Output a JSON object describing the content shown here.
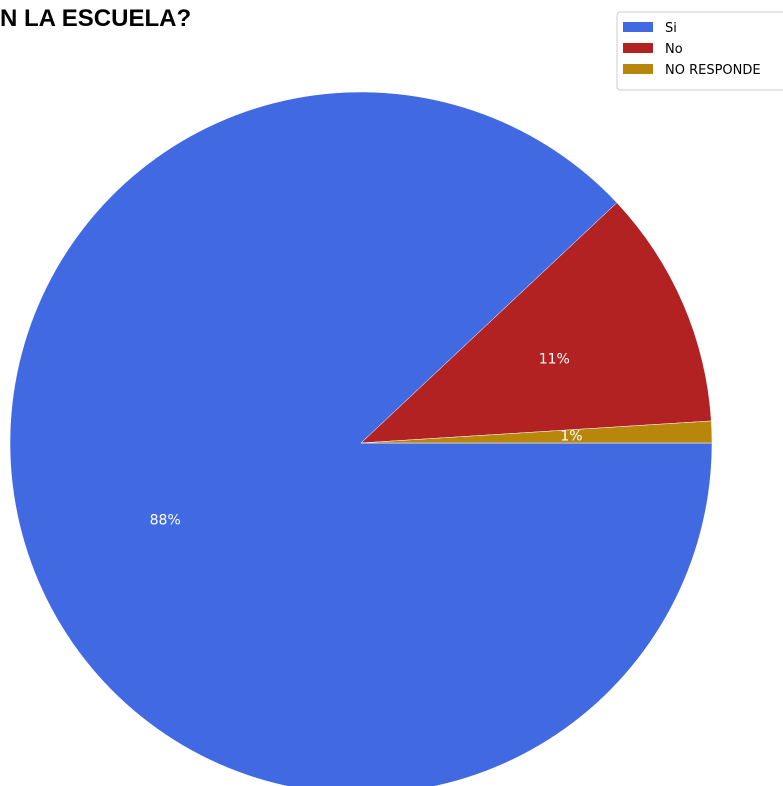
{
  "chart_data": {
    "type": "pie",
    "title": "N LA ESCUELA?",
    "categories": [
      "Si",
      "No",
      "NO RESPONDE"
    ],
    "values": [
      88,
      11,
      1
    ],
    "labels": [
      "88%",
      "11%",
      "1%"
    ],
    "colors": [
      "#4169e1",
      "#b22222",
      "#b8860b"
    ],
    "start_angle_deg": 0,
    "direction": "clockwise",
    "legend": {
      "placement": "top-right",
      "entries": [
        "Si",
        "No",
        "NO RESPONDE"
      ]
    }
  }
}
